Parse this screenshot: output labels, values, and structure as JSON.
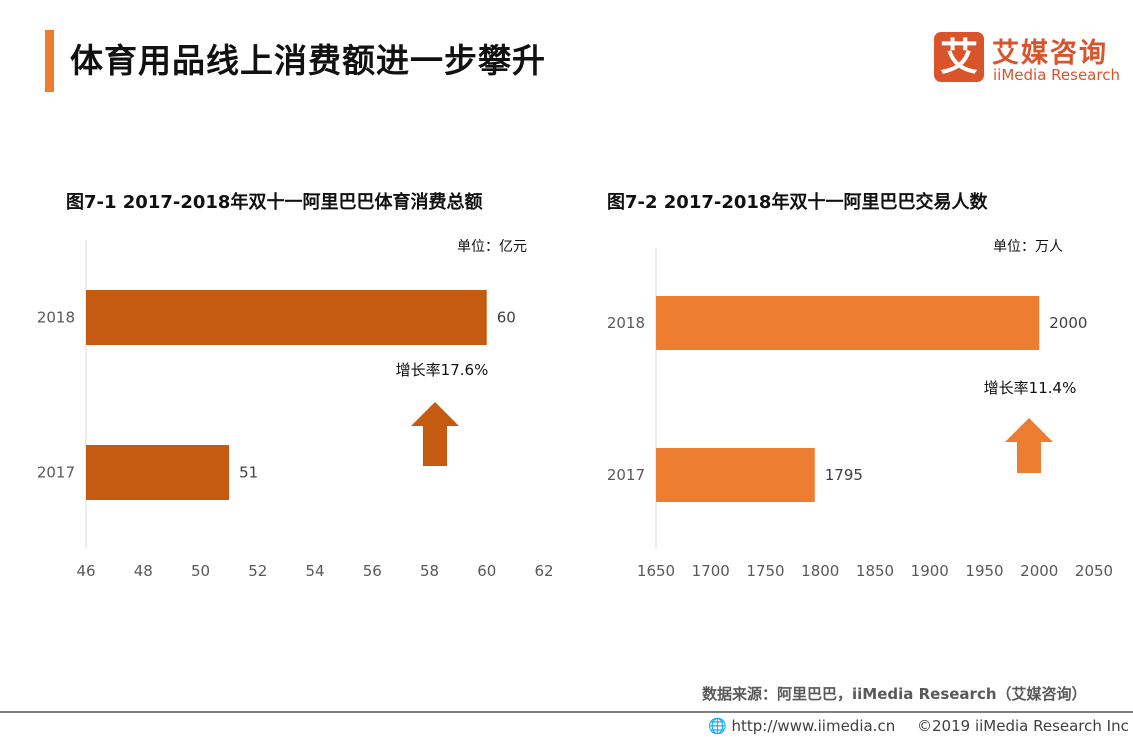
{
  "header": {
    "title": "体育用品线上消费额进一步攀升"
  },
  "logo": {
    "mark": "艾",
    "name_cn": "艾媒咨询",
    "name_en": "iiMedia Research"
  },
  "footer": {
    "source": "数据来源：阿里巴巴，iiMedia Research（艾媒咨询）",
    "url": "http://www.iimedia.cn",
    "copyright": "©2019  iiMedia Research  Inc"
  },
  "chart_data": [
    {
      "type": "bar",
      "orientation": "horizontal",
      "title": "图7-1  2017-2018年双十一阿里巴巴体育消费总额",
      "unit": "单位：亿元",
      "categories": [
        "2018",
        "2017"
      ],
      "values": [
        60,
        51
      ],
      "xlim": [
        46,
        62
      ],
      "xticks": [
        46,
        48,
        50,
        52,
        54,
        56,
        58,
        60,
        62
      ],
      "color": "#C55A11",
      "annotation": "增长率17.6%"
    },
    {
      "type": "bar",
      "orientation": "horizontal",
      "title": "图7-2  2017-2018年双十一阿里巴巴交易人数",
      "unit": "单位：万人",
      "categories": [
        "2018",
        "2017"
      ],
      "values": [
        2000,
        1795
      ],
      "xlim": [
        1650,
        2050
      ],
      "xticks": [
        1650,
        1700,
        1750,
        1800,
        1850,
        1900,
        1950,
        2000,
        2050
      ],
      "color": "#ED7D31",
      "annotation": "增长率11.4%"
    }
  ]
}
